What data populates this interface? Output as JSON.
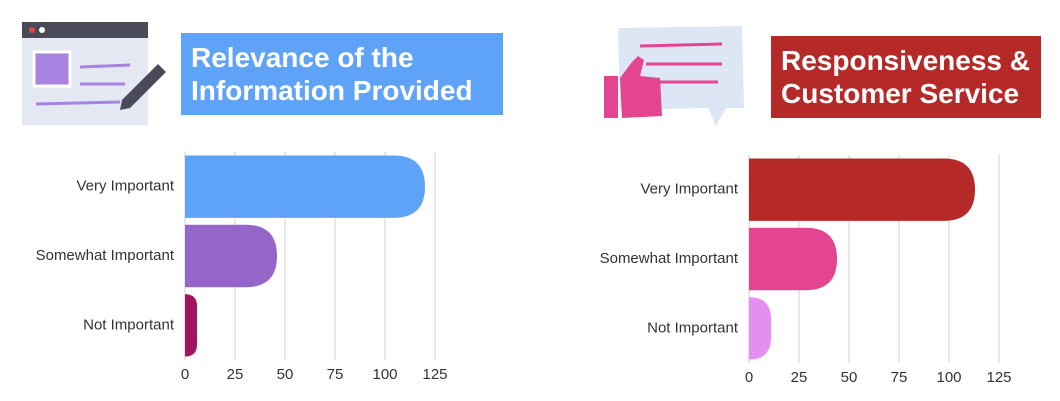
{
  "chart_data": [
    {
      "type": "bar",
      "orientation": "horizontal",
      "title": "Relevance of the Information Provided",
      "title_color": "#5ea3f8",
      "categories": [
        "Very Important",
        "Somewhat Important",
        "Not Important"
      ],
      "values": [
        120,
        46,
        6
      ],
      "colors": [
        "#5ea3f8",
        "#9466c9",
        "#a0175f"
      ],
      "xlim": [
        0,
        125
      ],
      "xticks": [
        0,
        25,
        50,
        75,
        100,
        125
      ],
      "grid": true
    },
    {
      "type": "bar",
      "orientation": "horizontal",
      "title": "Responsiveness & Customer Service",
      "title_color": "#b52a28",
      "categories": [
        "Very Important",
        "Somewhat Important",
        "Not Important"
      ],
      "values": [
        113,
        44,
        11
      ],
      "colors": [
        "#b52a28",
        "#e34590",
        "#e38ef0"
      ],
      "xlim": [
        0,
        125
      ],
      "xticks": [
        0,
        25,
        50,
        75,
        100,
        125
      ],
      "grid": true
    }
  ]
}
